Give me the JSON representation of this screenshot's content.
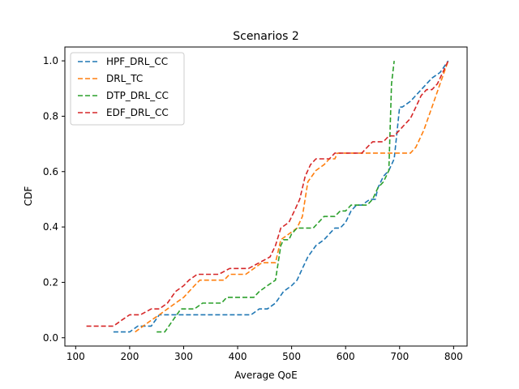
{
  "chart_data": {
    "type": "line",
    "title": "Scenarios 2",
    "xlabel": "Average QoE",
    "ylabel": "CDF",
    "xlim": [
      80,
      825
    ],
    "ylim": [
      -0.03,
      1.05
    ],
    "xticks": [
      100,
      200,
      300,
      400,
      500,
      600,
      700,
      800
    ],
    "yticks": [
      0.0,
      0.2,
      0.4,
      0.6,
      0.8,
      1.0
    ],
    "xtick_labels": [
      "100",
      "200",
      "300",
      "400",
      "500",
      "600",
      "700",
      "800"
    ],
    "ytick_labels": [
      "0.0",
      "0.2",
      "0.4",
      "0.6",
      "0.8",
      "1.0"
    ],
    "line_style": "dashed",
    "grid": false,
    "legend_position": "upper-left",
    "series": [
      {
        "name": "HPF_DRL_CC",
        "color": "#1f77b4",
        "x": [
          170,
          200,
          215,
          240,
          255,
          280,
          300,
          400,
          425,
          440,
          455,
          470,
          485,
          500,
          510,
          520,
          530,
          545,
          560,
          570,
          580,
          590,
          600,
          610,
          620,
          630,
          645,
          655,
          660,
          670,
          680,
          690,
          700,
          705,
          720,
          730,
          740,
          750,
          760,
          775,
          790
        ],
        "y": [
          0.021,
          0.021,
          0.042,
          0.042,
          0.083,
          0.083,
          0.083,
          0.083,
          0.083,
          0.104,
          0.104,
          0.125,
          0.167,
          0.188,
          0.208,
          0.25,
          0.292,
          0.333,
          0.354,
          0.375,
          0.396,
          0.396,
          0.417,
          0.458,
          0.479,
          0.479,
          0.5,
          0.5,
          0.542,
          0.583,
          0.604,
          0.646,
          0.833,
          0.833,
          0.854,
          0.875,
          0.896,
          0.917,
          0.938,
          0.958,
          1.0
        ]
      },
      {
        "name": "DRL_TC",
        "color": "#ff7f0e",
        "x": [
          210,
          225,
          240,
          255,
          270,
          285,
          300,
          310,
          320,
          330,
          340,
          375,
          385,
          395,
          415,
          430,
          445,
          460,
          470,
          480,
          495,
          510,
          520,
          530,
          545,
          560,
          570,
          575,
          580,
          585,
          600,
          610,
          620,
          625,
          630,
          640,
          650,
          660,
          670,
          680,
          690,
          700,
          720,
          730,
          745,
          760,
          775,
          790
        ],
        "y": [
          0.021,
          0.042,
          0.063,
          0.083,
          0.104,
          0.125,
          0.146,
          0.167,
          0.188,
          0.208,
          0.208,
          0.208,
          0.229,
          0.229,
          0.229,
          0.25,
          0.271,
          0.271,
          0.271,
          0.354,
          0.375,
          0.396,
          0.438,
          0.563,
          0.604,
          0.625,
          0.646,
          0.646,
          0.646,
          0.667,
          0.667,
          0.667,
          0.667,
          0.667,
          0.667,
          0.667,
          0.667,
          0.667,
          0.667,
          0.667,
          0.667,
          0.667,
          0.667,
          0.688,
          0.75,
          0.833,
          0.917,
          1.0
        ]
      },
      {
        "name": "DTP_DRL_CC",
        "color": "#2ca02c",
        "x": [
          250,
          265,
          280,
          295,
          310,
          320,
          335,
          345,
          370,
          380,
          410,
          420,
          430,
          440,
          455,
          470,
          480,
          485,
          490,
          495,
          500,
          510,
          520,
          530,
          540,
          550,
          560,
          580,
          590,
          600,
          610,
          620,
          630,
          640,
          650,
          660,
          670,
          675,
          680,
          685,
          690
        ],
        "y": [
          0.021,
          0.021,
          0.063,
          0.104,
          0.104,
          0.104,
          0.125,
          0.125,
          0.125,
          0.146,
          0.146,
          0.146,
          0.146,
          0.167,
          0.188,
          0.208,
          0.333,
          0.354,
          0.354,
          0.354,
          0.375,
          0.396,
          0.396,
          0.396,
          0.396,
          0.417,
          0.438,
          0.438,
          0.458,
          0.458,
          0.479,
          0.479,
          0.479,
          0.479,
          0.5,
          0.542,
          0.563,
          0.583,
          0.604,
          0.917,
          1.0
        ]
      },
      {
        "name": "EDF_DRL_CC",
        "color": "#d62728",
        "x": [
          120,
          170,
          185,
          200,
          210,
          220,
          240,
          255,
          270,
          285,
          300,
          310,
          325,
          345,
          365,
          385,
          395,
          420,
          440,
          460,
          470,
          480,
          495,
          505,
          515,
          525,
          535,
          545,
          555,
          570,
          580,
          600,
          620,
          630,
          640,
          650,
          660,
          670,
          680,
          690,
          700,
          710,
          720,
          730,
          740,
          750,
          760,
          770,
          780,
          790
        ],
        "y": [
          0.042,
          0.042,
          0.063,
          0.083,
          0.083,
          0.083,
          0.104,
          0.104,
          0.125,
          0.167,
          0.188,
          0.208,
          0.229,
          0.229,
          0.229,
          0.25,
          0.25,
          0.25,
          0.271,
          0.292,
          0.333,
          0.396,
          0.417,
          0.458,
          0.5,
          0.583,
          0.625,
          0.646,
          0.646,
          0.646,
          0.667,
          0.667,
          0.667,
          0.667,
          0.688,
          0.708,
          0.708,
          0.708,
          0.729,
          0.729,
          0.75,
          0.771,
          0.792,
          0.833,
          0.875,
          0.896,
          0.896,
          0.917,
          0.958,
          1.0
        ]
      }
    ]
  }
}
